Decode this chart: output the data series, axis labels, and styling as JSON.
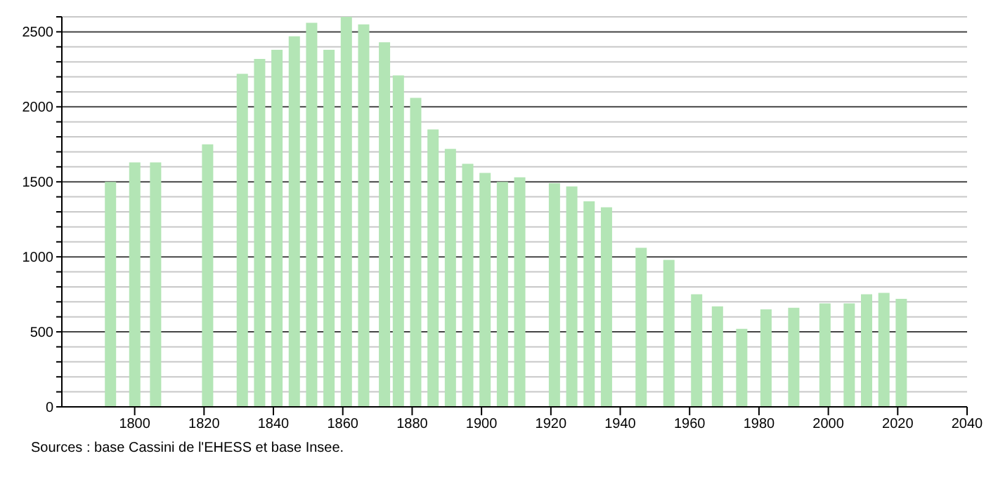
{
  "chart_data": {
    "type": "bar",
    "x": [
      1793,
      1800,
      1806,
      1821,
      1831,
      1836,
      1841,
      1846,
      1851,
      1856,
      1861,
      1866,
      1872,
      1876,
      1881,
      1886,
      1891,
      1896,
      1901,
      1906,
      1911,
      1921,
      1926,
      1931,
      1936,
      1946,
      1954,
      1962,
      1968,
      1975,
      1982,
      1990,
      1999,
      2006,
      2011,
      2016,
      2021
    ],
    "values": [
      1500,
      1630,
      1630,
      1750,
      2220,
      2320,
      2380,
      2470,
      2560,
      2380,
      2600,
      2550,
      2430,
      2210,
      2060,
      1850,
      1720,
      1620,
      1560,
      1500,
      1530,
      1490,
      1470,
      1370,
      1330,
      1060,
      980,
      750,
      670,
      520,
      650,
      660,
      690,
      690,
      750,
      760,
      720
    ],
    "color": "#b3e5b5",
    "xlim": [
      1779,
      2040
    ],
    "xticks": [
      1800,
      1820,
      1840,
      1860,
      1880,
      1900,
      1920,
      1940,
      1960,
      1980,
      2000,
      2020,
      2040
    ],
    "ylim": [
      0,
      2600
    ],
    "yticks": [
      0,
      {
        "value": 100,
        "label": null
      },
      {
        "value": 200,
        "label": null
      },
      {
        "value": 300,
        "label": null
      },
      {
        "value": 400,
        "label": null
      },
      500,
      {
        "value": 600,
        "label": null
      },
      {
        "value": 700,
        "label": null
      },
      {
        "value": 800,
        "label": null
      },
      {
        "value": 900,
        "label": null
      },
      1000,
      {
        "value": 1100,
        "label": null
      },
      {
        "value": 1200,
        "label": null
      },
      {
        "value": 1300,
        "label": null
      },
      {
        "value": 1400,
        "label": null
      },
      1500,
      {
        "value": 1600,
        "label": null
      },
      {
        "value": 1700,
        "label": null
      },
      {
        "value": 1800,
        "label": null
      },
      {
        "value": 1900,
        "label": null
      },
      2000,
      {
        "value": 2100,
        "label": null
      },
      {
        "value": 2200,
        "label": null
      },
      {
        "value": 2300,
        "label": null
      },
      {
        "value": 2400,
        "label": null
      },
      2500,
      {
        "value": 2600,
        "label": null
      }
    ],
    "grid": true,
    "annotations": [
      "Sources : base Cassini de l'EHESS et base Insee."
    ]
  }
}
